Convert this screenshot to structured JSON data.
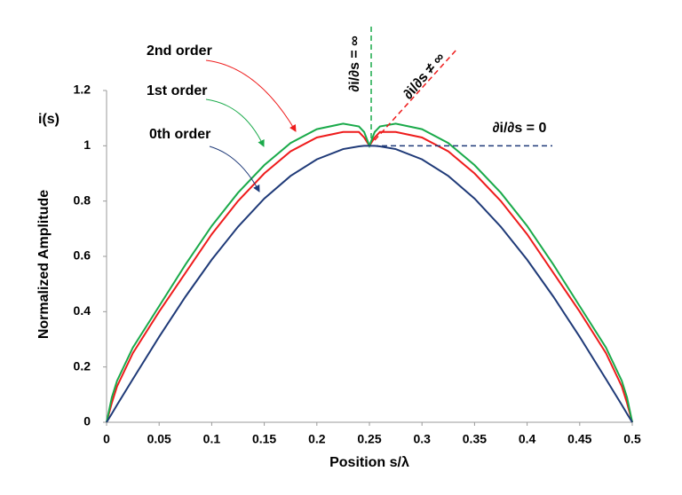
{
  "chart_data": {
    "type": "line",
    "x_label": "Position  s/λ",
    "y_label": "Normalized Amplitude",
    "y_symbol": "i(s)",
    "annotations": [
      "∂i/∂s = ∞",
      "∂i/∂s ≠ ∞",
      "∂i/∂s = 0"
    ],
    "annotation_colors": [
      "#1aaa4a",
      "#ee1c1c",
      "#1f3a78"
    ],
    "x": [
      0,
      0.005,
      0.01,
      0.025,
      0.05,
      0.075,
      0.1,
      0.125,
      0.15,
      0.175,
      0.2,
      0.225,
      0.24,
      0.245,
      0.25,
      0.255,
      0.26,
      0.275,
      0.3,
      0.325,
      0.35,
      0.375,
      0.4,
      0.425,
      0.45,
      0.475,
      0.49,
      0.495,
      0.5
    ],
    "series": [
      {
        "name": "2nd order",
        "color": "#ee1c1c",
        "values": [
          0,
          0.07,
          0.13,
          0.25,
          0.4,
          0.54,
          0.68,
          0.8,
          0.9,
          0.98,
          1.03,
          1.05,
          1.05,
          1.03,
          1.0,
          1.03,
          1.05,
          1.05,
          1.03,
          0.98,
          0.9,
          0.8,
          0.68,
          0.54,
          0.4,
          0.25,
          0.13,
          0.07,
          0
        ]
      },
      {
        "name": "1st order",
        "color": "#1aaa4a",
        "values": [
          0,
          0.09,
          0.15,
          0.27,
          0.42,
          0.57,
          0.71,
          0.83,
          0.93,
          1.01,
          1.06,
          1.08,
          1.07,
          1.05,
          1.0,
          1.05,
          1.07,
          1.08,
          1.06,
          1.01,
          0.93,
          0.83,
          0.71,
          0.57,
          0.42,
          0.27,
          0.15,
          0.09,
          0
        ]
      },
      {
        "name": "0th order",
        "color": "#1f3a78",
        "values": [
          0,
          0.031,
          0.063,
          0.156,
          0.309,
          0.454,
          0.588,
          0.707,
          0.809,
          0.891,
          0.951,
          0.988,
          0.998,
          1.0,
          1.0,
          1.0,
          0.998,
          0.988,
          0.951,
          0.891,
          0.809,
          0.707,
          0.588,
          0.454,
          0.309,
          0.156,
          0.063,
          0.031,
          0
        ]
      }
    ],
    "xlim": [
      0,
      0.5
    ],
    "xticks": [
      0,
      0.05,
      0.1,
      0.15,
      0.2,
      0.25,
      0.3,
      0.35,
      0.4,
      0.45,
      0.5
    ],
    "ylim": [
      0,
      1.2
    ],
    "yticks": [
      0,
      0.2,
      0.4,
      0.6,
      0.8,
      1,
      1.2
    ],
    "grid": false
  }
}
